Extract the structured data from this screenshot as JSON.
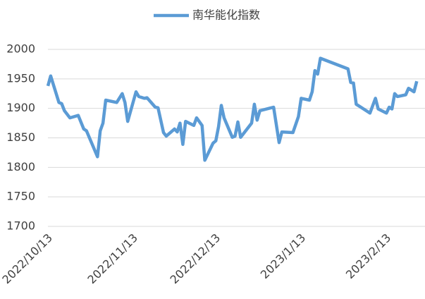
{
  "chart_data": {
    "type": "line",
    "x": [
      "2022/10/13",
      "2022/10/14",
      "2022/10/17",
      "2022/10/18",
      "2022/10/19",
      "2022/10/21",
      "2022/10/24",
      "2022/10/26",
      "2022/10/27",
      "2022/10/31",
      "2022/11/1",
      "2022/11/2",
      "2022/11/3",
      "2022/11/7",
      "2022/11/9",
      "2022/11/10",
      "2022/11/11",
      "2022/11/14",
      "2022/11/15",
      "2022/11/17",
      "2022/11/18",
      "2022/11/21",
      "2022/11/22",
      "2022/11/24",
      "2022/11/25",
      "2022/11/28",
      "2022/11/29",
      "2022/11/30",
      "2022/12/1",
      "2022/12/2",
      "2022/12/5",
      "2022/12/6",
      "2022/12/8",
      "2022/12/9",
      "2022/12/12",
      "2022/12/13",
      "2022/12/14",
      "2022/12/15",
      "2022/12/16",
      "2022/12/19",
      "2022/12/20",
      "2022/12/21",
      "2022/12/22",
      "2022/12/26",
      "2022/12/27",
      "2022/12/28",
      "2022/12/29",
      "2023/1/3",
      "2023/1/5",
      "2023/1/6",
      "2023/1/10",
      "2023/1/12",
      "2023/1/13",
      "2023/1/16",
      "2023/1/17",
      "2023/1/18",
      "2023/1/19",
      "2023/1/20",
      "2023/1/30",
      "2023/1/31",
      "2023/2/1",
      "2023/2/2",
      "2023/2/7",
      "2023/2/9",
      "2023/2/10",
      "2023/2/13",
      "2023/2/14",
      "2023/2/15",
      "2023/2/16",
      "2023/2/17",
      "2023/2/20",
      "2023/2/21",
      "2023/2/23",
      "2023/2/24"
    ],
    "series": [
      {
        "name": "南华能化指数",
        "color": "#5b9bd5",
        "values": [
          1938,
          1955,
          1910,
          1908,
          1896,
          1884,
          1888,
          1865,
          1862,
          1818,
          1862,
          1875,
          1914,
          1910,
          1925,
          1910,
          1878,
          1928,
          1920,
          1917,
          1918,
          1902,
          1901,
          1859,
          1853,
          1865,
          1860,
          1875,
          1839,
          1878,
          1871,
          1884,
          1871,
          1812,
          1841,
          1845,
          1869,
          1905,
          1884,
          1851,
          1853,
          1877,
          1851,
          1875,
          1907,
          1880,
          1896,
          1902,
          1842,
          1860,
          1859,
          1886,
          1917,
          1914,
          1928,
          1964,
          1958,
          1985,
          1967,
          1944,
          1943,
          1907,
          1892,
          1917,
          1899,
          1892,
          1902,
          1899,
          1925,
          1920,
          1923,
          1934,
          1928,
          1946
        ]
      }
    ],
    "xlim": [
      "2022/10/13",
      "2023/2/27"
    ],
    "xticks": [
      "2022/10/13",
      "2022/11/13",
      "2022/12/13",
      "2023/1/13",
      "2023/2/13"
    ],
    "ylim": [
      1700,
      2000
    ],
    "yticks": [
      1700,
      1750,
      1800,
      1850,
      1900,
      1950,
      2000
    ],
    "grid": true
  }
}
